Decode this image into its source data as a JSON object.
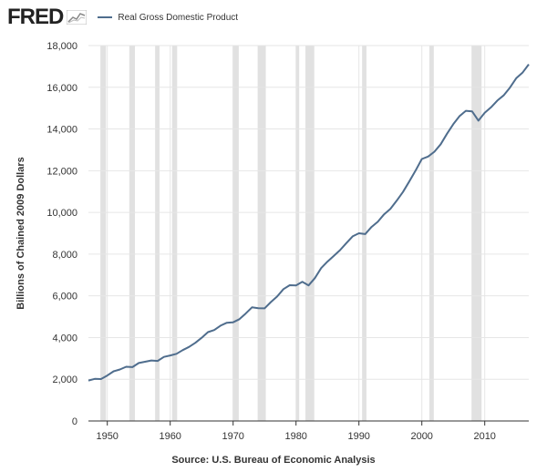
{
  "logo": {
    "text": "FRED",
    "icon": "line-chart-icon"
  },
  "legend": {
    "label": "Real Gross Domestic Product",
    "color": "#4f6d8d"
  },
  "source": "Source: U.S. Bureau of Economic Analysis",
  "chart_data": {
    "type": "line",
    "title": "",
    "xlabel": "",
    "ylabel": "Billions of Chained 2009 Dollars",
    "xlim": [
      1947,
      2017
    ],
    "ylim": [
      0,
      18000
    ],
    "grid": true,
    "legend_position": "top-left",
    "x_ticks": [
      1950,
      1960,
      1970,
      1980,
      1990,
      2000,
      2010
    ],
    "x_tick_labels": [
      "1950",
      "1960",
      "1970",
      "1980",
      "1990",
      "2000",
      "2010"
    ],
    "y_ticks": [
      0,
      2000,
      4000,
      6000,
      8000,
      10000,
      12000,
      14000,
      16000,
      18000
    ],
    "y_tick_labels": [
      "0",
      "2,000",
      "4,000",
      "6,000",
      "8,000",
      "10,000",
      "12,000",
      "14,000",
      "16,000",
      "18,000"
    ],
    "recessions": [
      [
        1948.9,
        1949.8
      ],
      [
        1953.5,
        1954.4
      ],
      [
        1957.6,
        1958.3
      ],
      [
        1960.3,
        1961.1
      ],
      [
        1969.9,
        1970.9
      ],
      [
        1973.9,
        1975.2
      ],
      [
        1980.0,
        1980.5
      ],
      [
        1981.5,
        1982.9
      ],
      [
        1990.5,
        1991.2
      ],
      [
        2001.2,
        2001.9
      ],
      [
        2007.9,
        2009.5
      ]
    ],
    "recession_color": "#e1e1e1",
    "series": [
      {
        "color": "#4f6d8d",
        "x": [
          1947,
          1948,
          1949,
          1950,
          1951,
          1952,
          1953,
          1954,
          1955,
          1956,
          1957,
          1958,
          1959,
          1960,
          1961,
          1962,
          1963,
          1964,
          1965,
          1966,
          1967,
          1968,
          1969,
          1970,
          1971,
          1972,
          1973,
          1974,
          1975,
          1976,
          1977,
          1978,
          1979,
          1980,
          1981,
          1982,
          1983,
          1984,
          1985,
          1986,
          1987,
          1988,
          1989,
          1990,
          1991,
          1992,
          1993,
          1994,
          1995,
          1996,
          1997,
          1998,
          1999,
          2000,
          2001,
          2002,
          2003,
          2004,
          2005,
          2006,
          2007,
          2008,
          2009,
          2010,
          2011,
          2012,
          2013,
          2014,
          2015,
          2016,
          2017
        ],
        "values": [
          1940,
          2020,
          2010,
          2180,
          2380,
          2470,
          2600,
          2580,
          2780,
          2840,
          2900,
          2880,
          3070,
          3140,
          3220,
          3400,
          3550,
          3750,
          3990,
          4260,
          4360,
          4570,
          4710,
          4730,
          4880,
          5150,
          5450,
          5410,
          5400,
          5700,
          5970,
          6320,
          6510,
          6500,
          6670,
          6500,
          6850,
          7330,
          7640,
          7910,
          8190,
          8530,
          8850,
          9000,
          8960,
          9300,
          9550,
          9910,
          10170,
          10560,
          10980,
          11480,
          12000,
          12560,
          12680,
          12910,
          13270,
          13770,
          14230,
          14620,
          14870,
          14840,
          14400,
          14780,
          15040,
          15360,
          15610,
          15980,
          16430,
          16700,
          17100
        ]
      }
    ]
  }
}
